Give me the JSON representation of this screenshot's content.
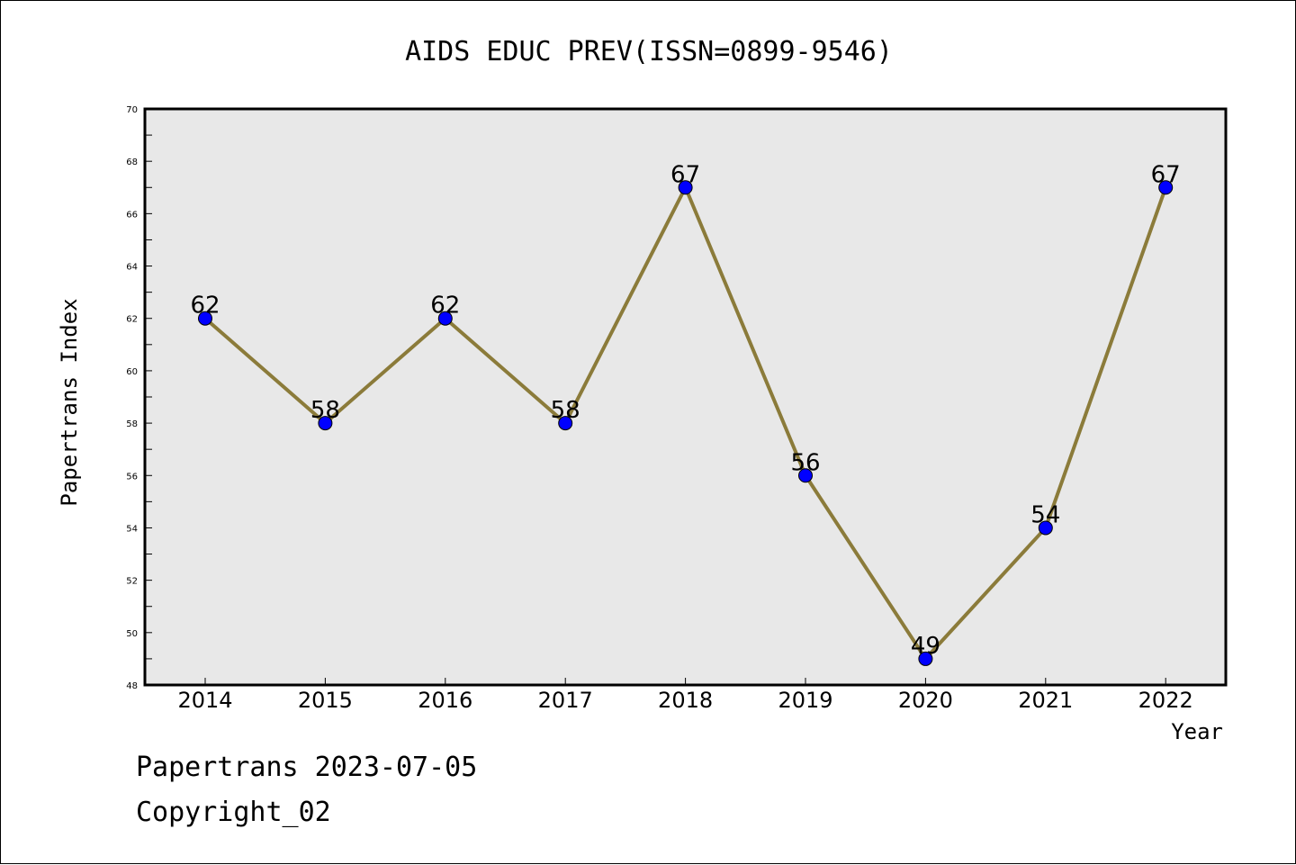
{
  "chart_data": {
    "type": "line",
    "title": "AIDS EDUC PREV(ISSN=0899-9546)",
    "xlabel": "Year",
    "ylabel": "Papertrans Index",
    "categories": [
      "2014",
      "2015",
      "2016",
      "2017",
      "2018",
      "2019",
      "2020",
      "2021",
      "2022"
    ],
    "series": [
      {
        "values": [
          62,
          58,
          62,
          58,
          67,
          56,
          49,
          54,
          67
        ]
      }
    ],
    "data_labels": [
      "62",
      "58",
      "62",
      "58",
      "67",
      "56",
      "49",
      "54",
      "67"
    ],
    "ylim": [
      48,
      70
    ],
    "yticks": [
      48,
      50,
      52,
      54,
      56,
      58,
      60,
      62,
      64,
      66,
      68,
      70
    ],
    "grid": false,
    "legend": "none",
    "colors": {
      "line": "#8B7B3A",
      "marker": "#0000FF",
      "plot_background": "#E8E8E8"
    }
  },
  "footer": {
    "line1": "Papertrans 2023-07-05",
    "line2": "Copyright_02"
  }
}
